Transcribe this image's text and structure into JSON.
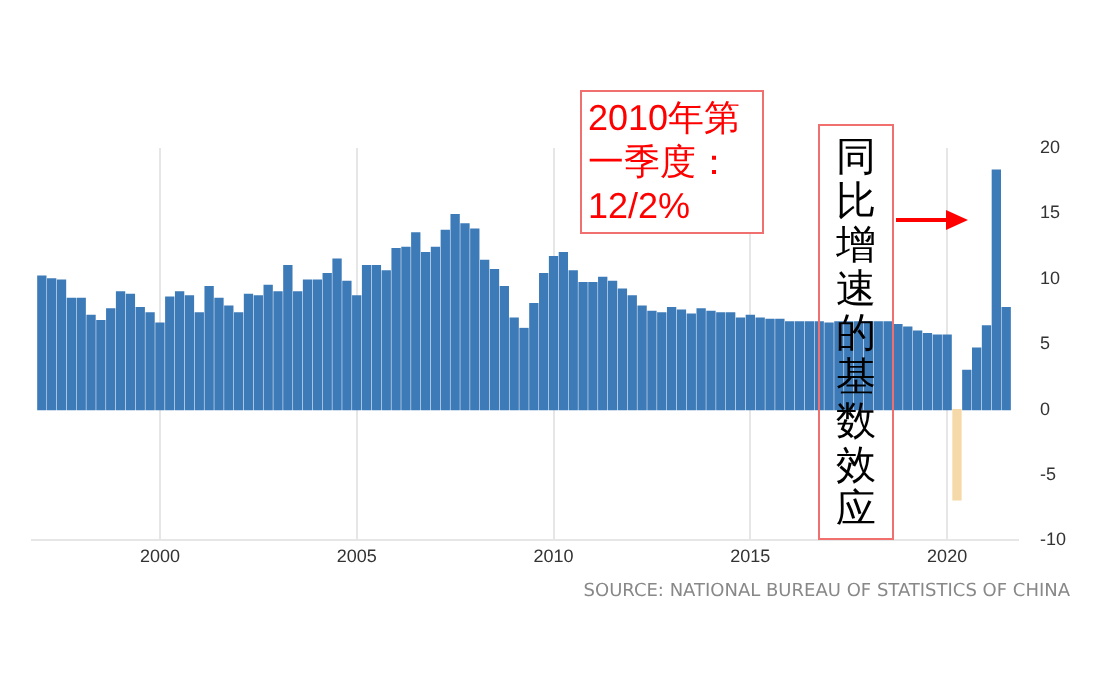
{
  "chart_data": {
    "type": "bar",
    "x": [
      1997,
      1997.25,
      1997.5,
      1997.75,
      1998,
      1998.25,
      1998.5,
      1998.75,
      1999,
      1999.25,
      1999.5,
      1999.75,
      2000,
      2000.25,
      2000.5,
      2000.75,
      2001,
      2001.25,
      2001.5,
      2001.75,
      2002,
      2002.25,
      2002.5,
      2002.75,
      2003,
      2003.25,
      2003.5,
      2003.75,
      2004,
      2004.25,
      2004.5,
      2004.75,
      2005,
      2005.25,
      2005.5,
      2005.75,
      2006,
      2006.25,
      2006.5,
      2006.75,
      2007,
      2007.25,
      2007.5,
      2007.75,
      2008,
      2008.25,
      2008.5,
      2008.75,
      2009,
      2009.25,
      2009.5,
      2009.75,
      2010,
      2010.25,
      2010.5,
      2010.75,
      2011,
      2011.25,
      2011.5,
      2011.75,
      2012,
      2012.25,
      2012.5,
      2012.75,
      2013,
      2013.25,
      2013.5,
      2013.75,
      2014,
      2014.25,
      2014.5,
      2014.75,
      2015,
      2015.25,
      2015.5,
      2015.75,
      2016,
      2016.25,
      2016.5,
      2016.75,
      2017,
      2017.25,
      2017.5,
      2017.75,
      2018,
      2018.25,
      2018.5,
      2018.75,
      2019,
      2019.25,
      2019.5,
      2019.75,
      2020,
      2020.25,
      2020.5,
      2020.75,
      2021,
      2021.25,
      2021.5
    ],
    "values": [
      10.2,
      10.0,
      9.9,
      8.5,
      8.5,
      7.2,
      6.8,
      7.7,
      9.0,
      8.8,
      7.8,
      7.4,
      6.6,
      8.6,
      9.0,
      8.7,
      7.4,
      9.4,
      8.5,
      7.9,
      7.4,
      8.8,
      8.7,
      9.5,
      9.0,
      11.0,
      9.0,
      9.9,
      9.9,
      10.4,
      11.5,
      9.8,
      8.7,
      11.0,
      11.0,
      10.6,
      12.3,
      12.4,
      13.5,
      12.0,
      12.4,
      13.7,
      14.9,
      14.2,
      13.8,
      11.4,
      10.7,
      9.4,
      7.0,
      6.2,
      8.1,
      10.4,
      11.7,
      12.0,
      10.6,
      9.7,
      9.7,
      10.1,
      9.8,
      9.2,
      8.7,
      7.9,
      7.5,
      7.4,
      7.8,
      7.6,
      7.3,
      7.7,
      7.5,
      7.4,
      7.4,
      7.0,
      7.2,
      7.0,
      6.9,
      6.9,
      6.7,
      6.7,
      6.7,
      6.7,
      6.6,
      6.7,
      6.7,
      6.7,
      6.7,
      6.7,
      6.7,
      6.5,
      6.3,
      6.0,
      5.8,
      5.7,
      5.7,
      -6.9,
      3.0,
      4.7,
      6.4,
      18.3,
      7.8
    ],
    "colors": [
      "#3d7ab8",
      "#3d7ab8",
      "#3d7ab8",
      "#3d7ab8",
      "#3d7ab8",
      "#3d7ab8",
      "#3d7ab8",
      "#3d7ab8",
      "#3d7ab8",
      "#3d7ab8",
      "#3d7ab8",
      "#3d7ab8",
      "#3d7ab8",
      "#3d7ab8",
      "#3d7ab8",
      "#3d7ab8",
      "#3d7ab8",
      "#3d7ab8",
      "#3d7ab8",
      "#3d7ab8",
      "#3d7ab8",
      "#3d7ab8",
      "#3d7ab8",
      "#3d7ab8",
      "#3d7ab8",
      "#3d7ab8",
      "#3d7ab8",
      "#3d7ab8",
      "#3d7ab8",
      "#3d7ab8",
      "#3d7ab8",
      "#3d7ab8",
      "#3d7ab8",
      "#3d7ab8",
      "#3d7ab8",
      "#3d7ab8",
      "#3d7ab8",
      "#3d7ab8",
      "#3d7ab8",
      "#3d7ab8",
      "#3d7ab8",
      "#3d7ab8",
      "#3d7ab8",
      "#3d7ab8",
      "#3d7ab8",
      "#3d7ab8",
      "#3d7ab8",
      "#3d7ab8",
      "#3d7ab8",
      "#3d7ab8",
      "#3d7ab8",
      "#3d7ab8",
      "#3d7ab8",
      "#3d7ab8",
      "#3d7ab8",
      "#3d7ab8",
      "#3d7ab8",
      "#3d7ab8",
      "#3d7ab8",
      "#3d7ab8",
      "#3d7ab8",
      "#3d7ab8",
      "#3d7ab8",
      "#3d7ab8",
      "#3d7ab8",
      "#3d7ab8",
      "#3d7ab8",
      "#3d7ab8",
      "#3d7ab8",
      "#3d7ab8",
      "#3d7ab8",
      "#3d7ab8",
      "#3d7ab8",
      "#3d7ab8",
      "#3d7ab8",
      "#3d7ab8",
      "#3d7ab8",
      "#3d7ab8",
      "#3d7ab8",
      "#3d7ab8",
      "#3d7ab8",
      "#3d7ab8",
      "#3d7ab8",
      "#3d7ab8",
      "#3d7ab8",
      "#3d7ab8",
      "#3d7ab8",
      "#3d7ab8",
      "#3d7ab8",
      "#3d7ab8",
      "#3d7ab8",
      "#3d7ab8",
      "#3d7ab8",
      "#f5d9a8",
      "#3d7ab8",
      "#3d7ab8",
      "#3d7ab8",
      "#3d7ab8",
      "#3d7ab8"
    ],
    "xlim": [
      1996.75,
      2021.8
    ],
    "xticks": [
      2000,
      2005,
      2010,
      2015,
      2020
    ],
    "ylim": [
      -10,
      20
    ],
    "yticks": [
      -10,
      -5,
      0,
      5,
      10,
      15,
      20
    ],
    "grid": "x",
    "legend": false,
    "annotations": [
      "2010年第一季度：12/2%",
      "同比增速的基数效应",
      "SOURCE: NATIONAL BUREAU OF STATISTICS OF CHINA"
    ]
  }
}
